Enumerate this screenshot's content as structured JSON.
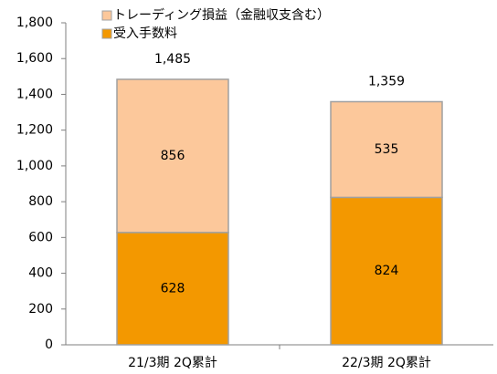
{
  "chart_data": {
    "type": "stacked_bar",
    "categories": [
      "21/3期 2Q累計",
      "22/3期 2Q累計"
    ],
    "series": [
      {
        "name": "受入手数料",
        "color": "#f39800",
        "values": [
          628,
          824
        ]
      },
      {
        "name": "トレーディング損益（金融収支含む）",
        "color": "#fcc89b",
        "values": [
          856,
          535
        ]
      }
    ],
    "totals": [
      1485,
      1359
    ],
    "total_labels": [
      "1,485",
      "1,359"
    ],
    "ylim": [
      0,
      1800
    ],
    "yticks": [
      0,
      200,
      400,
      600,
      800,
      {
        "value": 1000,
        "label": "1,000"
      },
      {
        "value": 1200,
        "label": "1,200"
      },
      {
        "value": 1400,
        "label": "1,400"
      },
      {
        "value": 1600,
        "label": "1,600"
      },
      {
        "value": 1800,
        "label": "1,800"
      }
    ],
    "grid": false
  }
}
